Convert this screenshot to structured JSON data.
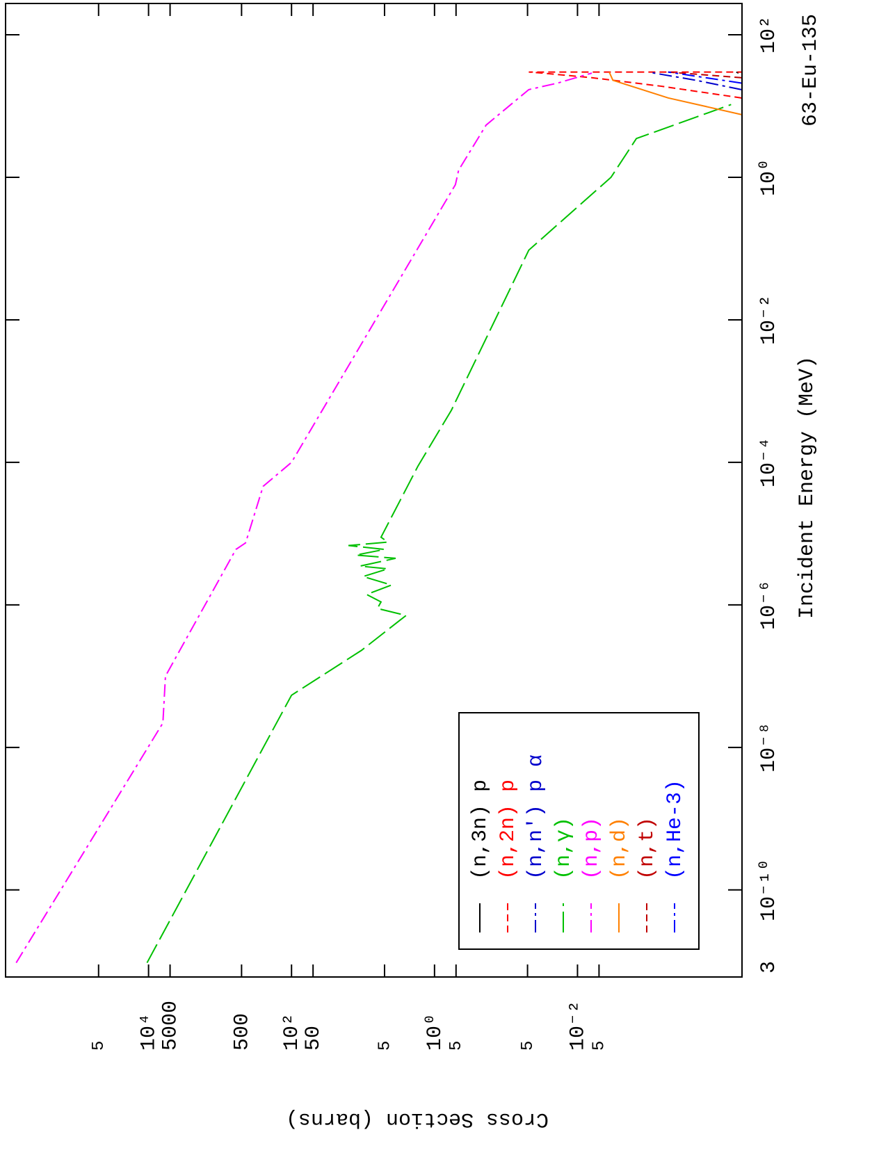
{
  "chart_data": {
    "type": "line",
    "x_label": "Incident Energy (MeV)",
    "y_label": "Cross Section (barns)",
    "annotation": "63-Eu-135",
    "x_start_label": "3",
    "xscale": "log",
    "yscale": "log",
    "xlim": [
      6e-12,
      275
    ],
    "ylim": [
      5e-05,
      1000000.0
    ],
    "xticks": [
      {
        "value": 1e-10,
        "label": "10⁻¹⁰"
      },
      {
        "value": 1e-08,
        "label": "10⁻⁸"
      },
      {
        "value": 1e-06,
        "label": "10⁻⁶"
      },
      {
        "value": 0.0001,
        "label": "10⁻⁴"
      },
      {
        "value": 0.01,
        "label": "10⁻²"
      },
      {
        "value": 1,
        "label": "10⁰"
      },
      {
        "value": 100,
        "label": "10²"
      }
    ],
    "yticks": [
      {
        "value": 50000,
        "label": "5"
      },
      {
        "value": 10000,
        "label": "10⁴"
      },
      5000,
      500,
      {
        "value": 100,
        "label": "10²"
      },
      50,
      5,
      {
        "value": 1,
        "label": "10⁰"
      },
      {
        "value": 0.5,
        "label": "5"
      },
      {
        "value": 0.05,
        "label": "5"
      },
      {
        "value": 0.01,
        "label": "10⁻²"
      },
      {
        "value": 0.005,
        "label": "5"
      }
    ],
    "legend": "lower left",
    "series": [
      {
        "name": "(n,3n) p",
        "color": "#000000",
        "style": "solid",
        "x": [
          29,
          30
        ],
        "values": [
          5.6e-05,
          6e-05
        ]
      },
      {
        "name": "(n,2n) p",
        "color": "#ff0000",
        "style": "dashed",
        "x": [
          13,
          19,
          25,
          29,
          30,
          30
        ],
        "values": [
          5.1e-05,
          0.00068,
          0.0063,
          0.031,
          0.048,
          5.1e-05
        ]
      },
      {
        "name": "(n,n') p α",
        "color": "#0000cc",
        "style": "dashdot",
        "x": [
          17,
          23,
          29,
          30
        ],
        "values": [
          5.1e-05,
          0.00022,
          0.00085,
          0.00095
        ]
      },
      {
        "name": "(n,γ)",
        "color": "#00c000",
        "style": "longdash",
        "x": [
          9.5e-12,
          5.4e-08,
          2.3e-07,
          6e-07,
          7.1e-07,
          8.9e-07,
          1.1e-06,
          1.4e-06,
          1.9e-06,
          2.5e-06,
          3.2e-06,
          3.5e-06,
          4.5e-06,
          5e-06,
          6e-06,
          6.8e-06,
          7.6e-06,
          8.9e-06,
          8.9e-05,
          0.00054,
          0.095,
          1,
          3.5,
          10.5
        ],
        "values": [
          10500,
          100,
          10.5,
          3.1,
          2.5,
          6.3,
          5.6,
          8.9,
          4,
          10,
          4.5,
          11,
          3.5,
          12.6,
          5,
          16,
          4.5,
          5.6,
          1.7,
          0.58,
          0.048,
          0.0034,
          0.0015,
          7.1e-05
        ]
      },
      {
        "name": "(n,p)",
        "color": "#ff00ff",
        "style": "dashdot",
        "x": [
          9.5e-12,
          2.2e-08,
          1e-07,
          6e-06,
          7.4e-06,
          1e-05,
          4.6e-05,
          0.0001,
          0.79,
          1.26,
          5.4,
          17,
          21,
          29
        ],
        "values": [
          710000,
          6300,
          5800,
          600,
          440,
          400,
          250,
          100,
          0.51,
          0.46,
          0.19,
          0.048,
          0.019,
          0.0063
        ]
      },
      {
        "name": "(n,d)",
        "color": "#ff8000",
        "style": "solid",
        "x": [
          7.6,
          13,
          23,
          30
        ],
        "values": [
          5.1e-05,
          0.00054,
          0.0032,
          0.0036
        ]
      },
      {
        "name": "(n,t)",
        "color": "#c00000",
        "style": "dashed",
        "x": [
          25,
          30
        ],
        "values": [
          5.1e-05,
          0.00054
        ]
      },
      {
        "name": "(n,He-3)",
        "color": "#0000ff",
        "style": "dashdot",
        "x": [
          21,
          30
        ],
        "values": [
          5.1e-05,
          0.00054
        ]
      }
    ]
  }
}
